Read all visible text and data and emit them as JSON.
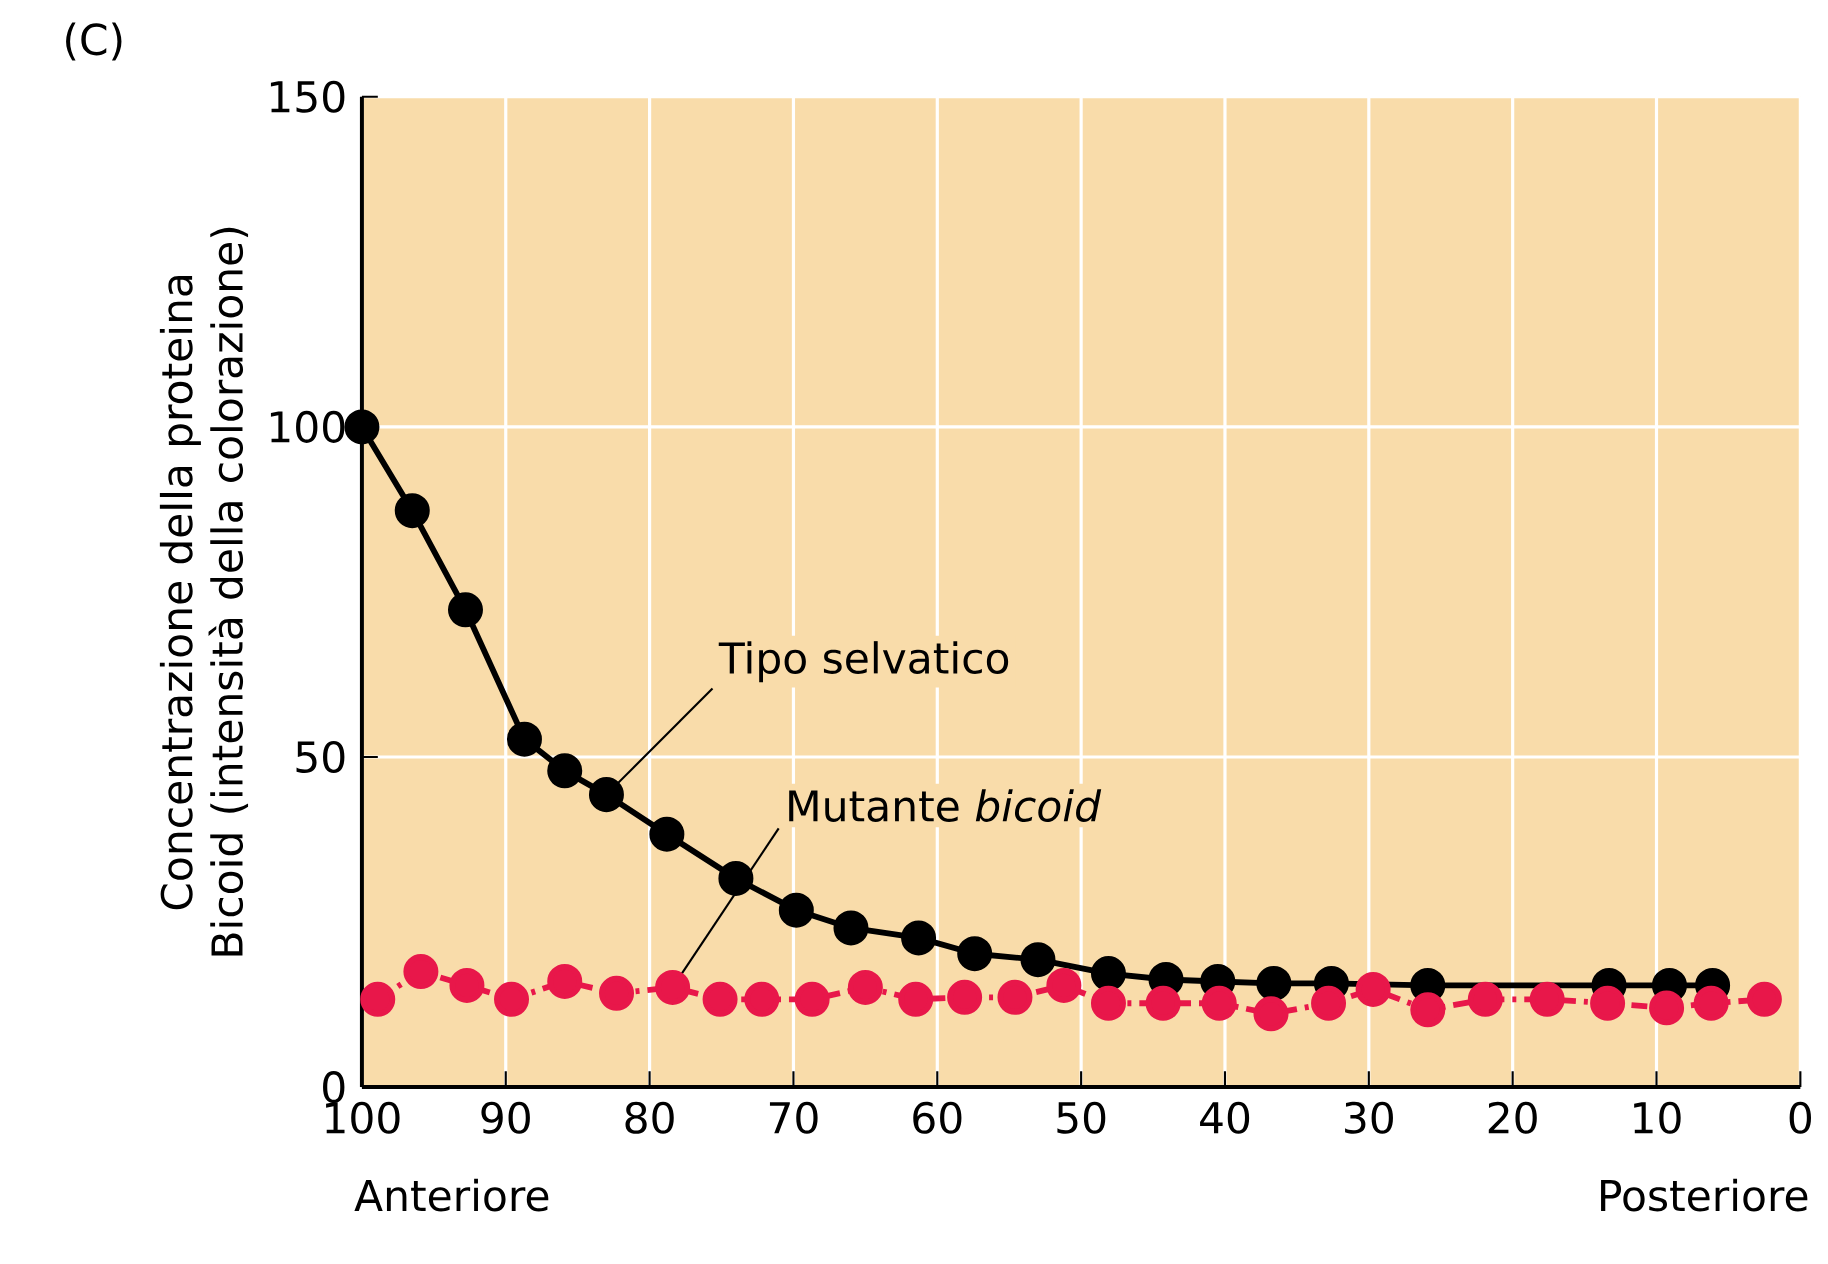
{
  "chart_data": {
    "type": "line",
    "ylabel": "Concentrazione della proteina  Bicoid (intensità della colorazione)",
    "xlim": [
      100,
      0
    ],
    "ylim": [
      0,
      150
    ],
    "xticks": [
      100,
      90,
      80,
      70,
      60,
      50,
      40,
      30,
      20,
      10,
      0
    ],
    "yticks": [
      0,
      50,
      100,
      150
    ],
    "grid": true,
    "marker": "circle",
    "series": [
      {
        "color": "#000000",
        "line_style": "solid",
        "x": [
          100,
          96.5,
          92.8,
          88.7,
          85.9,
          83,
          78.8,
          74,
          69.8,
          66,
          61.3,
          57.4,
          53,
          48.1,
          44.1,
          40.5,
          36.6,
          32.6,
          25.9,
          13.3,
          9.1,
          6.1
        ],
        "values": [
          100,
          87.3,
          72.3,
          52.7,
          47.9,
          44.3,
          38.3,
          31.6,
          26.8,
          24.1,
          22.6,
          20.2,
          19.3,
          17.2,
          16.3,
          16,
          15.7,
          15.7,
          15.4,
          15.4,
          15.4,
          15.4
        ]
      },
      {
        "color": "#e8174a",
        "line_style": "dashed",
        "x": [
          98.9,
          95.9,
          92.7,
          89.6,
          85.9,
          82.3,
          78.4,
          75.1,
          72.2,
          68.7,
          65,
          61.5,
          58.1,
          54.6,
          51.2,
          48.1,
          44.3,
          40.4,
          36.8,
          32.8,
          29.7,
          25.9,
          21.9,
          17.6,
          13.4,
          9.3,
          6.2,
          2.5
        ],
        "values": [
          13.3,
          17.5,
          15.4,
          13.3,
          16,
          14.2,
          15.1,
          13.3,
          13.3,
          13.3,
          15.1,
          13.3,
          13.6,
          13.6,
          15.4,
          12.7,
          12.7,
          12.7,
          11.1,
          12.7,
          14.8,
          11.7,
          13.3,
          13.3,
          12.7,
          12,
          12.7,
          13.3
        ]
      }
    ],
    "annotations": [
      {
        "text": "Tipo selvatico",
        "x": 83,
        "y": 44.3
      },
      {
        "text": "Mutante *bicoid*",
        "x": 78.4,
        "y": 15.1
      },
      "(C)",
      "Anteriore",
      "Posteriore"
    ]
  }
}
